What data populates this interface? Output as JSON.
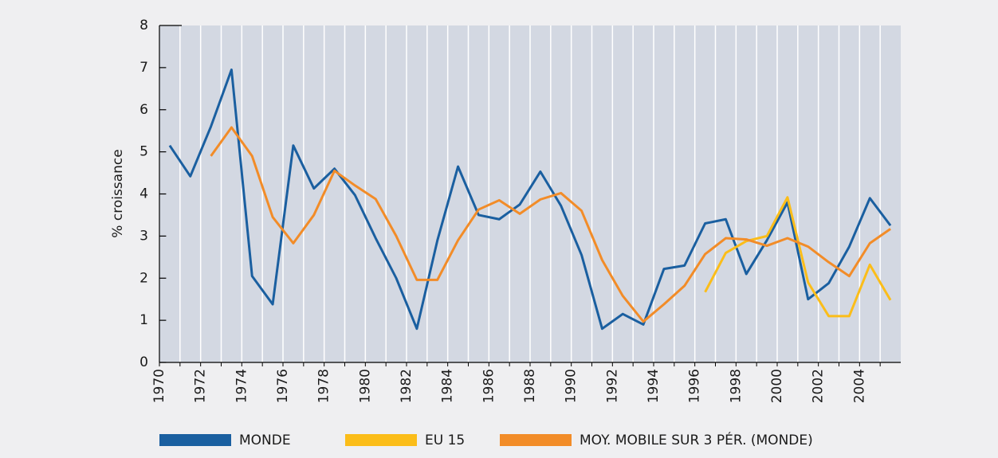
{
  "chart_data": {
    "type": "line",
    "y_label": "% croissance",
    "categories": [
      "1970",
      null,
      "1972",
      null,
      "1974",
      null,
      "1976",
      null,
      "1978",
      null,
      "1980",
      null,
      "1982",
      null,
      "1984",
      null,
      "1986",
      null,
      "1988",
      null,
      "1990",
      null,
      "1992",
      null,
      "1994",
      null,
      "1996",
      null,
      "1998",
      null,
      "2000",
      null,
      "2002",
      null,
      "2004",
      null
    ],
    "ylim": [
      0,
      8
    ],
    "yticks": [
      0,
      1,
      2,
      3,
      4,
      5,
      6,
      7,
      8
    ],
    "grid": true,
    "legend": "bottom",
    "series": [
      {
        "name": "MONDE",
        "color": "#1a5fa0",
        "values": [
          5.15,
          4.42,
          5.6,
          6.95,
          2.05,
          1.38,
          5.15,
          4.13,
          4.6,
          3.97,
          2.95,
          2.0,
          0.8,
          2.9,
          4.65,
          3.5,
          3.4,
          3.75,
          4.53,
          3.72,
          2.55,
          0.8,
          1.15,
          0.9,
          2.22,
          2.3,
          3.3,
          3.4,
          2.1,
          2.9,
          3.8,
          1.5,
          1.88,
          2.75,
          3.9,
          3.25
        ]
      },
      {
        "name": "EU 15",
        "color": "#fbbd19",
        "values": [
          null,
          null,
          null,
          null,
          null,
          null,
          null,
          null,
          null,
          null,
          null,
          null,
          null,
          null,
          null,
          null,
          null,
          null,
          null,
          null,
          null,
          null,
          null,
          null,
          null,
          null,
          1.67,
          2.6,
          2.88,
          3.0,
          3.92,
          1.9,
          1.1,
          1.1,
          2.32,
          1.48
        ]
      },
      {
        "name": "MOY. MOBILE SUR 3 PÉR. (MONDE)",
        "color": "#f28c28",
        "values": [
          null,
          null,
          4.9,
          5.58,
          4.9,
          3.45,
          2.83,
          3.5,
          4.55,
          4.2,
          3.88,
          3.0,
          1.96,
          1.96,
          2.9,
          3.63,
          3.85,
          3.53,
          3.87,
          4.02,
          3.6,
          2.43,
          1.58,
          0.97,
          1.38,
          1.82,
          2.57,
          2.95,
          2.92,
          2.77,
          2.95,
          2.75,
          2.38,
          2.05,
          2.83,
          3.17
        ]
      }
    ]
  }
}
